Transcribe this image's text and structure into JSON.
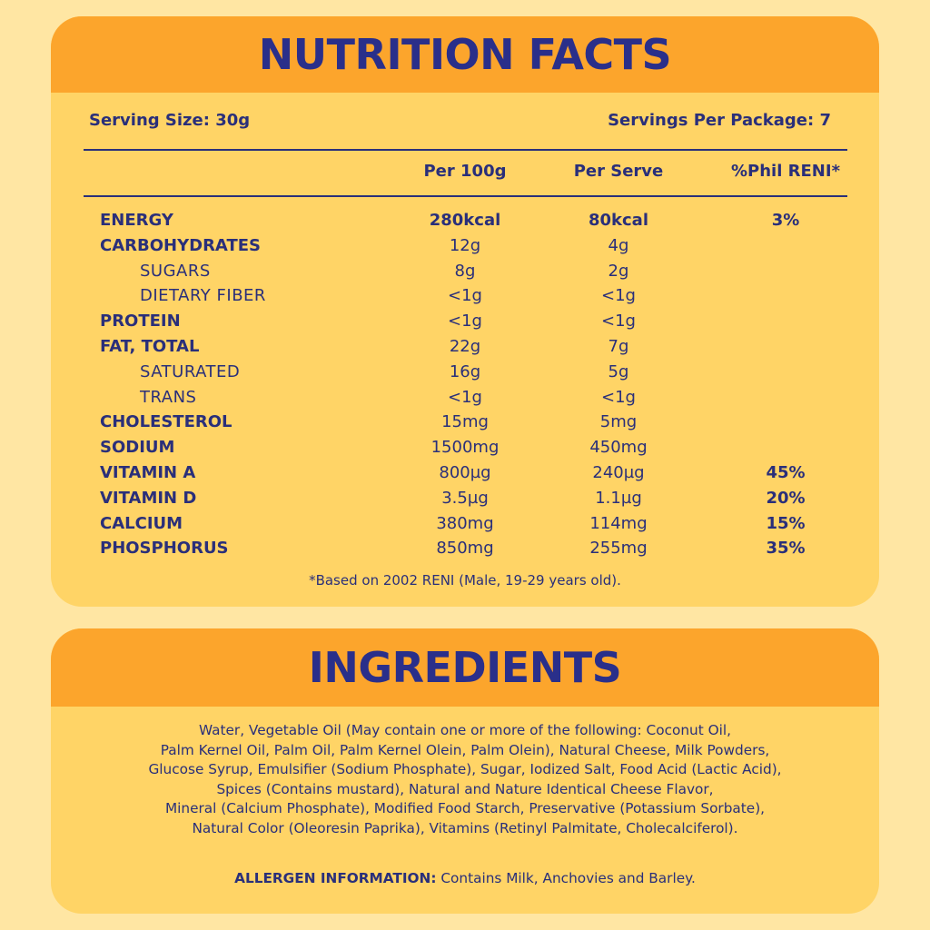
{
  "nutrition": {
    "title": "NUTRITION FACTS",
    "serving_size": "Serving Size: 30g",
    "servings_per_package": "Servings Per Package: 7",
    "columns": [
      "Per 100g",
      "Per Serve",
      "%Phil RENI*"
    ],
    "rows": [
      {
        "name": "ENERGY",
        "per100": "280kcal",
        "perserve": "80kcal",
        "reni": "3%"
      },
      {
        "name": "CARBOHYDRATES",
        "per100": "12g",
        "perserve": "4g",
        "reni": ""
      },
      {
        "name": "SUGARS",
        "per100": "8g",
        "perserve": "2g",
        "reni": ""
      },
      {
        "name": "DIETARY FIBER",
        "per100": "<1g",
        "perserve": "<1g",
        "reni": ""
      },
      {
        "name": "PROTEIN",
        "per100": "<1g",
        "perserve": "<1g",
        "reni": ""
      },
      {
        "name": "FAT, TOTAL",
        "per100": "22g",
        "perserve": "7g",
        "reni": ""
      },
      {
        "name": "SATURATED",
        "per100": "16g",
        "perserve": "5g",
        "reni": ""
      },
      {
        "name": "TRANS",
        "per100": "<1g",
        "perserve": "<1g",
        "reni": ""
      },
      {
        "name": "CHOLESTEROL",
        "per100": "15mg",
        "perserve": "5mg",
        "reni": ""
      },
      {
        "name": "SODIUM",
        "per100": "1500mg",
        "perserve": "450mg",
        "reni": ""
      },
      {
        "name": "VITAMIN A",
        "per100": "800µg",
        "perserve": "240µg",
        "reni": "45%"
      },
      {
        "name": "VITAMIN D",
        "per100": "3.5µg",
        "perserve": "1.1µg",
        "reni": "20%"
      },
      {
        "name": "CALCIUM",
        "per100": "380mg",
        "perserve": "114mg",
        "reni": "15%"
      },
      {
        "name": "PHOSPHORUS",
        "per100": "850mg",
        "perserve": "255mg",
        "reni": "35%"
      }
    ],
    "footnote": "*Based on 2002 RENI (Male, 19-29 years old)."
  },
  "ingredients": {
    "title": "INGREDIENTS",
    "lines": [
      "Water, Vegetable Oil (May contain one or more of the following: Coconut Oil,",
      "Palm Kernel Oil, Palm Oil, Palm Kernel Olein, Palm Olein), Natural Cheese, Milk Powders,",
      "Glucose Syrup, Emulsifier (Sodium Phosphate), Sugar, Iodized Salt, Food Acid (Lactic Acid),",
      "Spices (Contains mustard), Natural and Nature Identical Cheese Flavor,",
      "Mineral (Calcium Phosphate), Modified Food Starch, Preservative (Potassium Sorbate),",
      "Natural Color (Oleoresin Paprika), Vitamins (Retinyl Palmitate, Cholecalciferol)."
    ],
    "allergen_label": "ALLERGEN INFORMATION:",
    "allergen_text": " Contains Milk, Anchovies and Barley."
  },
  "colors": {
    "background": "#ffe6a3",
    "card": "#ffd466",
    "header": "#fca52c",
    "text": "#2a2f7a"
  }
}
